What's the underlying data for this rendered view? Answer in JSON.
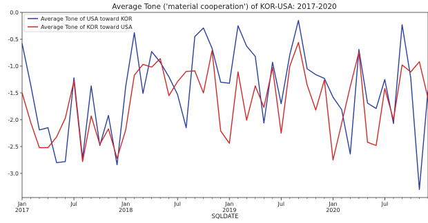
{
  "chart_data": {
    "type": "line",
    "title": "Average Tone ('material cooperation') of KOR-USA: 2017-2020",
    "xlabel": "SQLDATE",
    "ylabel": "",
    "x_start": "2017-01",
    "x_end": "2020-12",
    "ylim": [
      -3.45,
      0.0
    ],
    "yticks": [
      0.0,
      -0.5,
      -1.0,
      -1.5,
      -2.0,
      -2.5,
      -3.0
    ],
    "ytick_labels": [
      "0.0",
      "-0.5",
      "-1.0",
      "-1.5",
      "-2.0",
      "-2.5",
      "-3.0"
    ],
    "xticks": [
      {
        "date": "2017-01",
        "line1": "Jan",
        "line2": "2017"
      },
      {
        "date": "2017-07",
        "line1": "Jul",
        "line2": ""
      },
      {
        "date": "2018-01",
        "line1": "Jan",
        "line2": "2018"
      },
      {
        "date": "2018-07",
        "line1": "Jul",
        "line2": ""
      },
      {
        "date": "2019-01",
        "line1": "Jan",
        "line2": "2019"
      },
      {
        "date": "2019-07",
        "line1": "Jul",
        "line2": ""
      },
      {
        "date": "2020-01",
        "line1": "Jan",
        "line2": "2020"
      },
      {
        "date": "2020-07",
        "line1": "Jul",
        "line2": ""
      }
    ],
    "grid": false,
    "legend_position": "top-left",
    "series": [
      {
        "name": "Average Tone of USA toward KOR",
        "color": "#2a3fa6",
        "x": [
          "2017-01",
          "2017-02",
          "2017-03",
          "2017-04",
          "2017-05",
          "2017-06",
          "2017-07",
          "2017-08",
          "2017-09",
          "2017-10",
          "2017-11",
          "2017-12",
          "2018-01",
          "2018-02",
          "2018-03",
          "2018-04",
          "2018-05",
          "2018-06",
          "2018-07",
          "2018-08",
          "2018-09",
          "2018-10",
          "2018-11",
          "2018-12",
          "2019-01",
          "2019-02",
          "2019-03",
          "2019-04",
          "2019-05",
          "2019-06",
          "2019-07",
          "2019-08",
          "2019-09",
          "2019-10",
          "2019-11",
          "2019-12",
          "2020-01",
          "2020-02",
          "2020-03",
          "2020-04",
          "2020-05",
          "2020-06",
          "2020-07",
          "2020-08",
          "2020-09",
          "2020-10",
          "2020-11",
          "2020-12"
        ],
        "values": [
          -0.58,
          -1.35,
          -2.19,
          -2.15,
          -2.8,
          -2.78,
          -1.22,
          -2.72,
          -1.37,
          -2.48,
          -1.92,
          -2.84,
          -1.38,
          -0.38,
          -1.51,
          -0.73,
          -0.93,
          -1.2,
          -1.53,
          -2.15,
          -0.45,
          -0.29,
          -0.67,
          -1.3,
          -1.32,
          -0.25,
          -0.63,
          -0.82,
          -2.06,
          -0.93,
          -1.7,
          -0.79,
          -0.15,
          -1.05,
          -1.16,
          -1.23,
          -1.58,
          -1.81,
          -2.64,
          -0.69,
          -1.69,
          -1.79,
          -1.25,
          -2.07,
          -0.23,
          -1.22,
          -3.3,
          -1.45
        ]
      },
      {
        "name": "Average Tone of KOR toward USA",
        "color": "#d62728",
        "x": [
          "2017-01",
          "2017-02",
          "2017-03",
          "2017-04",
          "2017-05",
          "2017-06",
          "2017-07",
          "2017-08",
          "2017-09",
          "2017-10",
          "2017-11",
          "2017-12",
          "2018-01",
          "2018-02",
          "2018-03",
          "2018-04",
          "2018-05",
          "2018-06",
          "2018-07",
          "2018-08",
          "2018-09",
          "2018-10",
          "2018-11",
          "2018-12",
          "2019-01",
          "2019-02",
          "2019-03",
          "2019-04",
          "2019-05",
          "2019-06",
          "2019-07",
          "2019-08",
          "2019-09",
          "2019-10",
          "2019-11",
          "2019-12",
          "2020-01",
          "2020-02",
          "2020-03",
          "2020-04",
          "2020-05",
          "2020-06",
          "2020-07",
          "2020-08",
          "2020-09",
          "2020-10",
          "2020-11",
          "2020-12"
        ],
        "values": [
          -1.5,
          -2.05,
          -2.52,
          -2.52,
          -2.32,
          -1.97,
          -1.28,
          -2.78,
          -1.93,
          -2.46,
          -2.17,
          -2.72,
          -2.19,
          -1.17,
          -0.97,
          -1.02,
          -0.86,
          -1.55,
          -1.29,
          -1.1,
          -1.09,
          -1.5,
          -0.71,
          -2.21,
          -2.44,
          -1.11,
          -2.01,
          -1.37,
          -1.77,
          -1.03,
          -2.25,
          -1.0,
          -0.56,
          -1.35,
          -1.82,
          -1.26,
          -2.75,
          -2.07,
          -1.38,
          -0.74,
          -2.42,
          -2.48,
          -1.42,
          -2.0,
          -0.98,
          -1.11,
          -0.92,
          -1.6
        ]
      }
    ]
  }
}
